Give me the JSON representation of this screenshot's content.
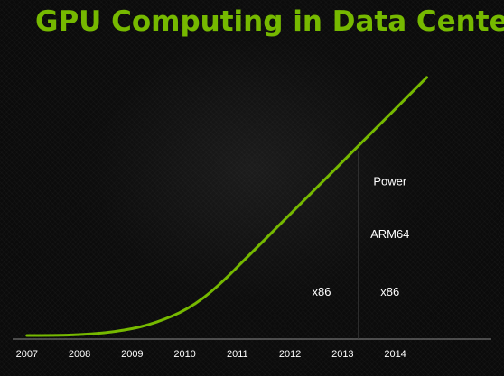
{
  "slide": {
    "title": "GPU Computing in Data Centers"
  },
  "colors": {
    "accent": "#76b900",
    "background": "#0b0b0b",
    "text": "#ffffff",
    "divider": "#3a3a3a"
  },
  "chart_data": {
    "type": "line",
    "title": "GPU Computing in Data Centers",
    "xlabel": "",
    "ylabel": "",
    "x_ticks": [
      "2007",
      "2008",
      "2009",
      "2010",
      "2011",
      "2012",
      "2013",
      "2014"
    ],
    "xlim": [
      2006.9,
      2014.9
    ],
    "ylim": [
      0,
      100
    ],
    "y_axis_shown": false,
    "grid": false,
    "series": [
      {
        "x": [
          2007.0,
          2007.5,
          2008.0,
          2008.5,
          2009.0,
          2009.3,
          2009.6,
          2009.9,
          2010.2,
          2010.5,
          2010.8,
          2011.1,
          2011.4,
          2011.7,
          2012.0,
          2012.3,
          2012.6,
          2012.9,
          2013.2,
          2013.5,
          2013.8,
          2014.1,
          2014.4,
          2014.6
        ],
        "y": [
          0.0,
          0.0,
          0.3,
          1.0,
          2.5,
          4.0,
          6.0,
          8.5,
          12.0,
          16.5,
          22.0,
          28.0,
          34.0,
          40.0,
          46.0,
          52.0,
          58.0,
          64.0,
          70.0,
          76.0,
          82.0,
          88.0,
          94.0,
          98.0
        ],
        "color": "#76b900"
      }
    ],
    "divider_x": 2013.3,
    "annotations": [
      {
        "text": "x86",
        "x": 2012.6,
        "y": 15
      },
      {
        "text": "x86",
        "x": 2013.9,
        "y": 15
      },
      {
        "text": "ARM64",
        "x": 2013.9,
        "y": 37
      },
      {
        "text": "Power",
        "x": 2013.9,
        "y": 57
      }
    ]
  }
}
